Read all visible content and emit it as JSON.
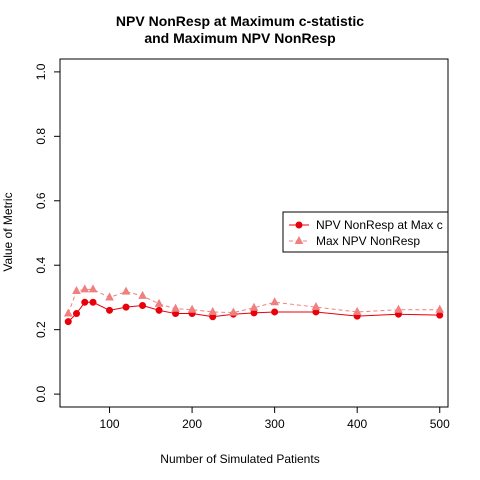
{
  "chart_data": {
    "type": "line",
    "title_line1": "NPV NonResp at Maximum c-statistic",
    "title_line2": "and Maximum NPV NonResp",
    "xlabel": "Number of Simulated Patients",
    "ylabel": "Value of Metric",
    "xlim": [
      40,
      510
    ],
    "ylim": [
      -0.04,
      1.04
    ],
    "x_ticks": [
      100,
      200,
      300,
      400,
      500
    ],
    "y_ticks": [
      0.0,
      0.2,
      0.4,
      0.6,
      0.8,
      1.0
    ],
    "x_tick_labels": [
      "100",
      "200",
      "300",
      "400",
      "500"
    ],
    "y_tick_labels": [
      "0.0",
      "0.2",
      "0.4",
      "0.6",
      "0.8",
      "1.0"
    ],
    "grid": false,
    "legend_position": "right",
    "x": [
      50,
      60,
      70,
      80,
      100,
      120,
      140,
      160,
      180,
      200,
      225,
      250,
      275,
      300,
      350,
      400,
      450,
      500
    ],
    "series": [
      {
        "name": "NPV NonResp at Max c",
        "color": "#e8000b",
        "line": "solid",
        "marker": "circle",
        "values": [
          0.225,
          0.25,
          0.285,
          0.285,
          0.26,
          0.27,
          0.275,
          0.26,
          0.25,
          0.25,
          0.24,
          0.248,
          0.252,
          0.255,
          0.255,
          0.242,
          0.248,
          0.245
        ]
      },
      {
        "name": "Max NPV NonResp",
        "color": "#f08080",
        "line": "dashed",
        "marker": "triangle",
        "values": [
          0.25,
          0.32,
          0.325,
          0.325,
          0.3,
          0.318,
          0.305,
          0.28,
          0.265,
          0.262,
          0.255,
          0.253,
          0.268,
          0.285,
          0.27,
          0.255,
          0.262,
          0.262
        ]
      }
    ]
  }
}
